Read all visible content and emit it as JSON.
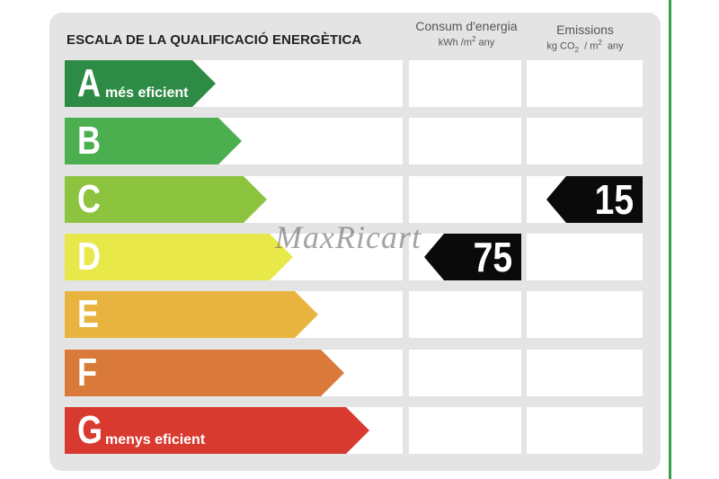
{
  "title": "ESCALA DE LA QUALIFICACIÓ ENERGÈTICA",
  "columns": {
    "consumption": {
      "label": "Consum d'energia",
      "unit": "kWh /m",
      "unit_sup": "2",
      "unit_suffix": " any"
    },
    "emissions": {
      "label": "Emissions",
      "unit_pre": "kg CO",
      "unit_sub": "2",
      "unit_mid": "  / m",
      "unit_sup": "2",
      "unit_suffix": "  any"
    }
  },
  "ratings": [
    {
      "letter": "A",
      "sublabel": "més eficient",
      "color": "#2e8b45"
    },
    {
      "letter": "B",
      "sublabel": "",
      "color": "#4caf4f"
    },
    {
      "letter": "C",
      "sublabel": "",
      "color": "#8cc43f"
    },
    {
      "letter": "D",
      "sublabel": "",
      "color": "#e8e84a"
    },
    {
      "letter": "E",
      "sublabel": "",
      "color": "#e8b33e"
    },
    {
      "letter": "F",
      "sublabel": "",
      "color": "#d9793a"
    },
    {
      "letter": "G",
      "sublabel": "menys eficient",
      "color": "#d83a30"
    }
  ],
  "consumption_value": {
    "value": "75",
    "rating": "D"
  },
  "emissions_value": {
    "value": "15",
    "rating": "C"
  },
  "watermark": "MaxRicart"
}
